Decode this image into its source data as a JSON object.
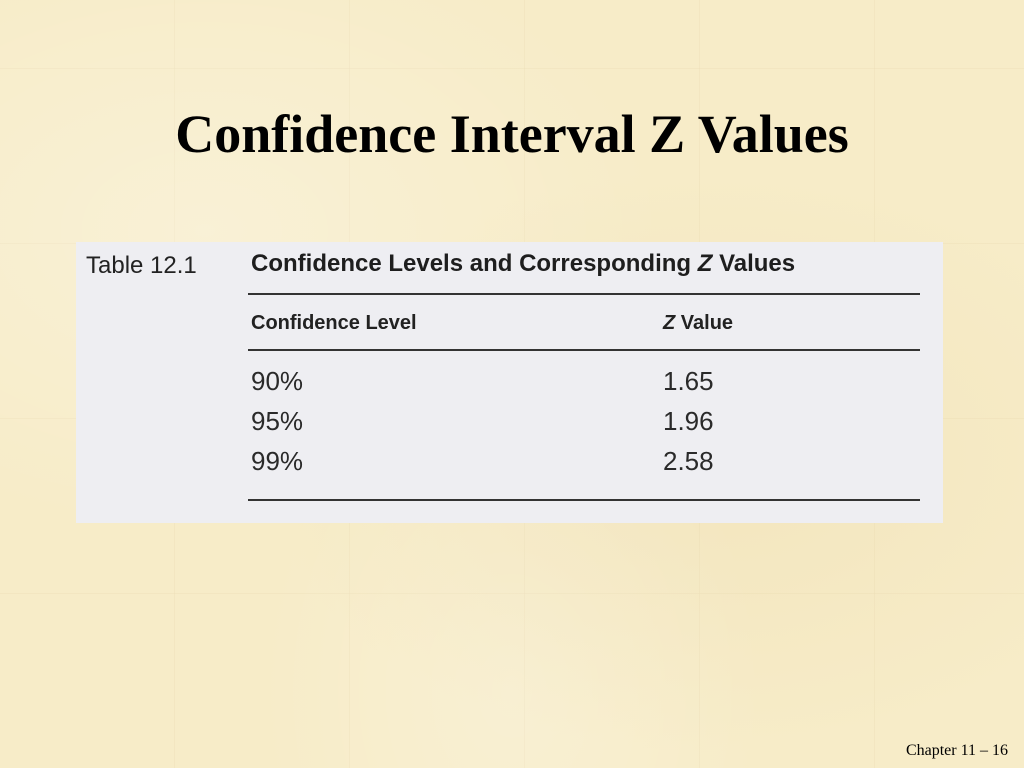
{
  "slide": {
    "title": "Confidence Interval Z Values"
  },
  "table": {
    "label": "Table 12.1",
    "caption_prefix": "Confidence Levels and Corresponding ",
    "caption_z": "Z",
    "caption_suffix": " Values",
    "headers": {
      "confidence_level": "Confidence Level",
      "z_value_z": "Z",
      "z_value_rest": " Value"
    },
    "rows": [
      {
        "level": "90%",
        "z": "1.65"
      },
      {
        "level": "95%",
        "z": "1.96"
      },
      {
        "level": "99%",
        "z": "2.58"
      }
    ]
  },
  "footer": {
    "text": "Chapter 11 – 16"
  }
}
